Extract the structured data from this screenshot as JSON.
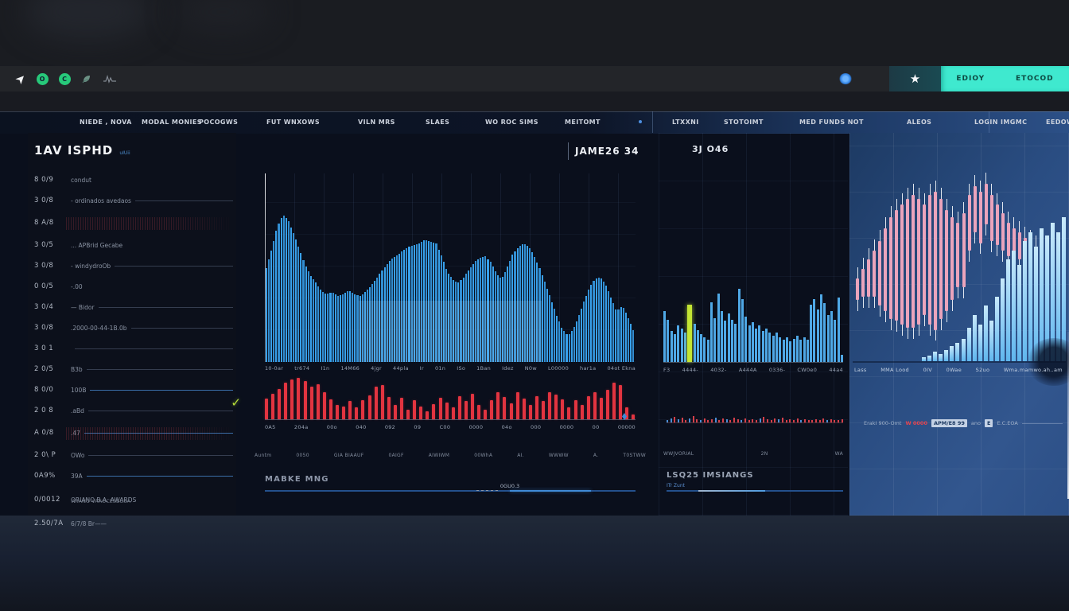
{
  "topbar": {
    "icons": [
      "nav-arrow-icon",
      "green-badge-o-icon",
      "green-badge-c-icon",
      "leaf-icon",
      "waveform-icon",
      "glow-dot-icon",
      "star-icon"
    ],
    "badge_o": "O",
    "badge_c": "C",
    "teal_buttons": [
      {
        "label": "EDIOY"
      },
      {
        "label": "ETOCOD"
      }
    ],
    "teal_color": "#3fe9cf"
  },
  "nav": {
    "items": [
      "NIEDE , NOVA",
      "MODAL MONIES",
      "POCOGWS",
      "FUT WNXOWS",
      "VILN MRS",
      "SLAES",
      "WO ROC SIMS",
      "MEITOMT",
      "LTXXNI",
      "STOTOIMT",
      "MED FUNDS NOT",
      "ALEOS",
      "LOGIN IMGMC",
      "EEDOW"
    ]
  },
  "left_panel": {
    "title": "1AV ISPHD",
    "title_sub": "uIUii",
    "rows": [
      {
        "code": "8 0/9",
        "label": "condut",
        "line": "none"
      },
      {
        "code": "3 0/8",
        "label": "- ordinados avedaos",
        "line": "dim"
      },
      {
        "code": "8 A/8",
        "label": "",
        "line": "none",
        "noise": true
      },
      {
        "code": "3 0/5",
        "label": "... APBrid Gecabe",
        "line": "none"
      },
      {
        "code": "3 0/8",
        "label": "- windydroOb",
        "line": "dim"
      },
      {
        "code": "0 0/5",
        "label": "-.00",
        "line": "none"
      },
      {
        "code": "3 0/4",
        "label": "— Bidor",
        "line": "dim"
      },
      {
        "code": "3 0/8",
        "label": ".2000-00-44-1B.0b",
        "line": "dim"
      },
      {
        "code": "3 0 1",
        "label": "",
        "line": "dim"
      },
      {
        "code": "2 0/5",
        "label": "B3b",
        "line": "dim"
      },
      {
        "code": "8 0/0",
        "label": "100B",
        "line": "blue"
      },
      {
        "code": "2 0 8",
        "label": ".aBd",
        "line": "dim",
        "arrow": true
      },
      {
        "code": "A 0/8",
        "label": ".47",
        "line": "blue",
        "noise": true
      },
      {
        "code": "2 0\\ P",
        "label": "OWo",
        "line": "dim"
      },
      {
        "code": "0A9%",
        "label": "39A",
        "line": "blue"
      },
      {
        "code": "0/0012",
        "label": "ORIANO   B.A.   AWARDS",
        "sub": "W.IANO VAROCESBUSA",
        "line": "none"
      },
      {
        "code": "2.50/7A",
        "label": "6/7/8   Br——",
        "line": "none"
      }
    ]
  },
  "center_panel": {
    "header_value": "JAME26 34",
    "axis1_ticks": [
      "10-0ar",
      "tr674",
      "I1n",
      "14M66",
      "4jgr",
      "44pla",
      "Ir",
      "01n",
      "ISo",
      "1Ban",
      "Idez",
      "N0w",
      "L00000",
      "har1a",
      "04ot Ekna"
    ],
    "axis2_ticks": [
      "0A5",
      "204a",
      "00o",
      "040",
      "092",
      "09",
      "C00",
      "0000",
      "04o",
      "000",
      "0000",
      "00",
      "00000"
    ],
    "bottom_ticks": [
      "Auntm",
      "0050",
      "GIA BIAAUF",
      "0AIGF",
      "AIWIWM",
      "00WhA",
      "AI.",
      "WWWW",
      "A.",
      "T0STWW"
    ],
    "footer_label": "MABKE MNG",
    "slider_label": "0GU0.3"
  },
  "panel3": {
    "header": "3J O46",
    "ticks": [
      "F3",
      "4444-",
      "4032-",
      "A444A",
      "0336-",
      "CW0e0",
      "44a4"
    ],
    "mid_labels": [
      "WWJVORIAL",
      "2N",
      "WA"
    ],
    "footer_label": "LSQ25 IMSIANGS",
    "footer_sub": "ITr Zunt"
  },
  "right_panel": {
    "ticks": [
      "Lass",
      "MMA Lood",
      "0IV",
      "0Wae",
      "S2uo",
      "Wma.mamwo.ah..am"
    ],
    "badges": [
      {
        "text": "ErakI 900-Omt",
        "style": "grey"
      },
      {
        "text": "W 0000",
        "style": "red"
      },
      {
        "text": "APM/E8 99",
        "style": "box"
      },
      {
        "text": "ano",
        "style": "grey"
      },
      {
        "text": "E",
        "style": "box"
      },
      {
        "text": "E.C.EOA",
        "style": "grey"
      }
    ]
  },
  "chart_data": [
    {
      "id": "main-area",
      "type": "area",
      "color": "#38a1ec",
      "values": [
        0.5,
        0.6,
        0.72,
        0.78,
        0.75,
        0.68,
        0.6,
        0.52,
        0.46,
        0.42,
        0.38,
        0.36,
        0.37,
        0.35,
        0.36,
        0.38,
        0.36,
        0.35,
        0.37,
        0.4,
        0.44,
        0.48,
        0.52,
        0.55,
        0.57,
        0.59,
        0.61,
        0.62,
        0.63,
        0.65,
        0.64,
        0.63,
        0.56,
        0.48,
        0.44,
        0.42,
        0.45,
        0.49,
        0.53,
        0.55,
        0.56,
        0.53,
        0.47,
        0.44,
        0.5,
        0.57,
        0.61,
        0.63,
        0.61,
        0.56,
        0.49,
        0.41,
        0.33,
        0.25,
        0.18,
        0.14,
        0.17,
        0.24,
        0.32,
        0.39,
        0.44,
        0.45,
        0.41,
        0.34,
        0.27,
        0.3,
        0.24,
        0.17
      ]
    },
    {
      "id": "main-volume",
      "type": "bar",
      "color": "#e23440",
      "values": [
        0.5,
        0.62,
        0.74,
        0.88,
        0.96,
        1.0,
        0.92,
        0.78,
        0.84,
        0.66,
        0.48,
        0.34,
        0.3,
        0.44,
        0.28,
        0.46,
        0.58,
        0.78,
        0.82,
        0.54,
        0.34,
        0.52,
        0.24,
        0.46,
        0.3,
        0.2,
        0.36,
        0.52,
        0.4,
        0.28,
        0.56,
        0.44,
        0.62,
        0.34,
        0.24,
        0.46,
        0.66,
        0.54,
        0.38,
        0.66,
        0.5,
        0.34,
        0.56,
        0.44,
        0.66,
        0.6,
        0.48,
        0.28,
        0.46,
        0.34,
        0.56,
        0.66,
        0.52,
        0.72,
        0.88,
        0.82,
        0.28,
        0.12
      ]
    },
    {
      "id": "side-bars",
      "type": "bar",
      "color": "#4fa8e6",
      "highlight_index": 7,
      "highlight_color": "#c3e534",
      "values": [
        0.7,
        0.58,
        0.42,
        0.38,
        0.5,
        0.46,
        0.4,
        0.78,
        0.52,
        0.44,
        0.38,
        0.34,
        0.3,
        0.82,
        0.6,
        0.94,
        0.7,
        0.56,
        0.66,
        0.58,
        0.52,
        1.0,
        0.86,
        0.62,
        0.5,
        0.54,
        0.46,
        0.5,
        0.42,
        0.46,
        0.4,
        0.36,
        0.4,
        0.34,
        0.3,
        0.34,
        0.28,
        0.32,
        0.36,
        0.3,
        0.34,
        0.3,
        0.78,
        0.86,
        0.72,
        0.92,
        0.8,
        0.64,
        0.7,
        0.58,
        0.88,
        0.1
      ]
    },
    {
      "id": "candles",
      "type": "candlestick",
      "body_color": "#eba4bc",
      "wick_color": "#f2f5f9",
      "tops": [
        0.55,
        0.5,
        0.45,
        0.4,
        0.35,
        0.28,
        0.22,
        0.18,
        0.15,
        0.12,
        0.1,
        0.12,
        0.15,
        0.1,
        0.08,
        0.12,
        0.18,
        0.22,
        0.25,
        0.2,
        0.1,
        0.05,
        0.08,
        0.04,
        0.1,
        0.15,
        0.2,
        0.25,
        0.28,
        0.3,
        0.33,
        0.35,
        0.38,
        0.4,
        0.42,
        0.44,
        0.46,
        0.48
      ],
      "lengths": [
        0.12,
        0.15,
        0.2,
        0.25,
        0.35,
        0.45,
        0.55,
        0.6,
        0.65,
        0.7,
        0.72,
        0.68,
        0.6,
        0.7,
        0.75,
        0.65,
        0.55,
        0.45,
        0.35,
        0.4,
        0.3,
        0.25,
        0.28,
        0.22,
        0.25,
        0.22,
        0.2,
        0.18,
        0.16,
        0.15,
        0.14,
        0.13,
        0.12,
        0.11,
        0.1,
        0.1,
        0.09,
        0.09
      ]
    },
    {
      "id": "light-volume",
      "type": "bar",
      "color": "#8fd0f5",
      "values": [
        0,
        0,
        0,
        0,
        0,
        0,
        0,
        0,
        0,
        0,
        0,
        0,
        0.02,
        0.03,
        0.05,
        0.04,
        0.06,
        0.08,
        0.1,
        0.12,
        0.18,
        0.25,
        0.2,
        0.3,
        0.22,
        0.35,
        0.45,
        0.55,
        0.6,
        0.52,
        0.65,
        0.7,
        0.62,
        0.72,
        0.68,
        0.75,
        0.7,
        0.78
      ]
    },
    {
      "id": "mini-strip",
      "type": "bar",
      "heights": [
        3,
        5,
        7,
        4,
        6,
        3,
        5,
        8,
        4,
        3,
        5,
        3,
        4,
        6,
        3,
        5,
        4,
        3,
        6,
        4,
        3,
        5,
        3,
        4,
        3,
        5,
        7,
        4,
        3,
        5,
        4,
        6,
        3,
        4,
        3,
        5,
        3,
        4,
        3,
        3,
        4,
        3,
        5,
        3,
        4,
        3,
        3,
        4
      ],
      "colors": [
        "b",
        "b",
        "r",
        "b",
        "r",
        "r",
        "b",
        "r",
        "r",
        "b",
        "r",
        "r",
        "r",
        "b",
        "r",
        "r",
        "b",
        "r",
        "r",
        "r",
        "b",
        "r",
        "r",
        "r",
        "r",
        "b",
        "r",
        "r",
        "r",
        "r",
        "b",
        "r",
        "r",
        "r",
        "r",
        "r",
        "b",
        "r",
        "r",
        "r",
        "r",
        "r",
        "r",
        "b",
        "r",
        "r",
        "r",
        "r"
      ]
    }
  ]
}
